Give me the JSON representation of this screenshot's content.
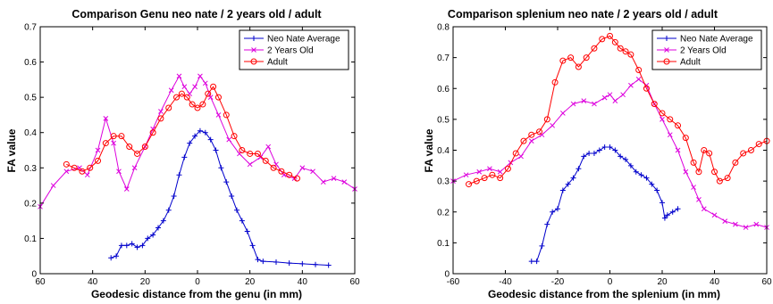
{
  "chart_data": [
    {
      "type": "line",
      "title": "Comparison Genu neo nate / 2 years old / adult",
      "xlabel": "Geodesic distance from the genu (in mm)",
      "ylabel": "FA value",
      "xlim": [
        -60,
        60
      ],
      "ylim": [
        0,
        0.7
      ],
      "xticks": [
        -60,
        -40,
        -20,
        0,
        20,
        40,
        60
      ],
      "xtick_labels": [
        "60",
        "40",
        "20",
        "0",
        "20",
        "40",
        "60"
      ],
      "yticks": [
        0,
        0.1,
        0.2,
        0.3,
        0.4,
        0.5,
        0.6,
        0.7
      ],
      "ytick_labels": [
        "0",
        "0.1",
        "0.2",
        "0.3",
        "0.4",
        "0.5",
        "0.6",
        "0.7"
      ],
      "grid": false,
      "legend_position": "top-right",
      "series": [
        {
          "name": "Neo Nate Average",
          "color": "#0000cc",
          "marker": "plus",
          "x": [
            -33,
            -31,
            -29,
            -27,
            -25,
            -23,
            -21,
            -19,
            -17,
            -15,
            -13,
            -11,
            -9,
            -7,
            -5,
            -3,
            -1,
            1,
            3,
            5,
            7,
            9,
            11,
            13,
            15,
            17,
            19,
            21,
            23,
            25,
            30,
            35,
            40,
            45,
            50
          ],
          "y": [
            0.045,
            0.05,
            0.08,
            0.08,
            0.085,
            0.075,
            0.08,
            0.1,
            0.11,
            0.13,
            0.15,
            0.18,
            0.22,
            0.28,
            0.33,
            0.37,
            0.39,
            0.405,
            0.4,
            0.38,
            0.35,
            0.3,
            0.26,
            0.22,
            0.18,
            0.15,
            0.12,
            0.08,
            0.04,
            0.035,
            0.033,
            0.03,
            0.028,
            0.026,
            0.024
          ]
        },
        {
          "name": "2 Years Old",
          "color": "#dd00dd",
          "marker": "x",
          "x": [
            -60,
            -55,
            -50,
            -45,
            -42,
            -38,
            -35,
            -32,
            -30,
            -27,
            -24,
            -20,
            -17,
            -14,
            -10,
            -7,
            -5,
            -3,
            -1,
            1,
            3,
            5,
            8,
            12,
            16,
            20,
            24,
            27,
            30,
            33,
            37,
            40,
            44,
            48,
            52,
            56,
            60
          ],
          "y": [
            0.19,
            0.25,
            0.29,
            0.3,
            0.28,
            0.35,
            0.44,
            0.37,
            0.29,
            0.24,
            0.3,
            0.36,
            0.41,
            0.46,
            0.52,
            0.56,
            0.53,
            0.51,
            0.53,
            0.56,
            0.54,
            0.5,
            0.45,
            0.38,
            0.34,
            0.31,
            0.33,
            0.36,
            0.31,
            0.28,
            0.27,
            0.3,
            0.29,
            0.26,
            0.27,
            0.26,
            0.24
          ]
        },
        {
          "name": "Adult",
          "color": "#ff0000",
          "marker": "circle",
          "x": [
            -50,
            -47,
            -44,
            -41,
            -38,
            -35,
            -32,
            -29,
            -26,
            -23,
            -20,
            -17,
            -14,
            -11,
            -8,
            -6,
            -4,
            -2,
            0,
            2,
            4,
            6,
            8,
            11,
            14,
            17,
            20,
            23,
            26,
            29,
            32,
            35,
            38
          ],
          "y": [
            0.31,
            0.3,
            0.29,
            0.3,
            0.32,
            0.37,
            0.39,
            0.39,
            0.36,
            0.34,
            0.36,
            0.4,
            0.44,
            0.47,
            0.5,
            0.51,
            0.5,
            0.48,
            0.47,
            0.48,
            0.51,
            0.53,
            0.5,
            0.45,
            0.39,
            0.35,
            0.34,
            0.34,
            0.32,
            0.3,
            0.29,
            0.28,
            0.27
          ]
        }
      ]
    },
    {
      "type": "line",
      "title": "Comparison splenium neo nate / 2 years old / adult",
      "xlabel": "Geodesic distance from the splenium (in mm)",
      "ylabel": "FA value",
      "xlim": [
        -60,
        60
      ],
      "ylim": [
        0,
        0.8
      ],
      "xticks": [
        -60,
        -40,
        -20,
        0,
        20,
        40,
        60
      ],
      "xtick_labels": [
        "-60",
        "-40",
        "-20",
        "0",
        "20",
        "40",
        "60"
      ],
      "yticks": [
        0,
        0.1,
        0.2,
        0.3,
        0.4,
        0.5,
        0.6,
        0.7,
        0.8
      ],
      "ytick_labels": [
        "0",
        "0.1",
        "0.2",
        "0.3",
        "0.4",
        "0.5",
        "0.6",
        "0.7",
        "0.8"
      ],
      "grid": false,
      "legend_position": "top-right",
      "series": [
        {
          "name": "Neo Nate Average",
          "color": "#0000cc",
          "marker": "plus",
          "x": [
            -30,
            -28,
            -26,
            -24,
            -22,
            -20,
            -18,
            -16,
            -14,
            -12,
            -10,
            -8,
            -6,
            -4,
            -2,
            0,
            2,
            4,
            6,
            8,
            10,
            12,
            14,
            16,
            18,
            20,
            21,
            22,
            24,
            26
          ],
          "y": [
            0.04,
            0.04,
            0.09,
            0.16,
            0.2,
            0.21,
            0.27,
            0.29,
            0.31,
            0.34,
            0.38,
            0.39,
            0.39,
            0.4,
            0.41,
            0.41,
            0.4,
            0.38,
            0.37,
            0.35,
            0.33,
            0.32,
            0.31,
            0.29,
            0.27,
            0.23,
            0.18,
            0.19,
            0.2,
            0.21
          ]
        },
        {
          "name": "2 Years Old",
          "color": "#dd00dd",
          "marker": "x",
          "x": [
            -60,
            -55,
            -50,
            -46,
            -42,
            -38,
            -34,
            -30,
            -26,
            -22,
            -18,
            -14,
            -10,
            -6,
            -2,
            0,
            2,
            5,
            8,
            11,
            14,
            17,
            20,
            23,
            26,
            29,
            32,
            34,
            36,
            40,
            44,
            48,
            52,
            56,
            60
          ],
          "y": [
            0.3,
            0.32,
            0.33,
            0.34,
            0.33,
            0.36,
            0.38,
            0.43,
            0.45,
            0.48,
            0.52,
            0.55,
            0.56,
            0.55,
            0.57,
            0.58,
            0.56,
            0.58,
            0.61,
            0.63,
            0.61,
            0.55,
            0.5,
            0.45,
            0.4,
            0.33,
            0.28,
            0.24,
            0.21,
            0.19,
            0.17,
            0.16,
            0.15,
            0.16,
            0.15
          ]
        },
        {
          "name": "Adult",
          "color": "#ff0000",
          "marker": "circle",
          "x": [
            -54,
            -51,
            -48,
            -45,
            -42,
            -39,
            -36,
            -33,
            -30,
            -27,
            -24,
            -21,
            -18,
            -15,
            -12,
            -9,
            -6,
            -3,
            0,
            2,
            4,
            6,
            8,
            11,
            14,
            17,
            20,
            23,
            26,
            29,
            32,
            34,
            36,
            38,
            40,
            42,
            45,
            48,
            51,
            54,
            57,
            60
          ],
          "y": [
            0.29,
            0.3,
            0.31,
            0.32,
            0.31,
            0.34,
            0.39,
            0.43,
            0.45,
            0.46,
            0.5,
            0.62,
            0.69,
            0.7,
            0.67,
            0.7,
            0.73,
            0.76,
            0.77,
            0.75,
            0.73,
            0.72,
            0.71,
            0.66,
            0.6,
            0.55,
            0.52,
            0.5,
            0.48,
            0.44,
            0.36,
            0.33,
            0.4,
            0.39,
            0.33,
            0.3,
            0.31,
            0.36,
            0.39,
            0.4,
            0.42,
            0.43
          ]
        }
      ]
    }
  ]
}
